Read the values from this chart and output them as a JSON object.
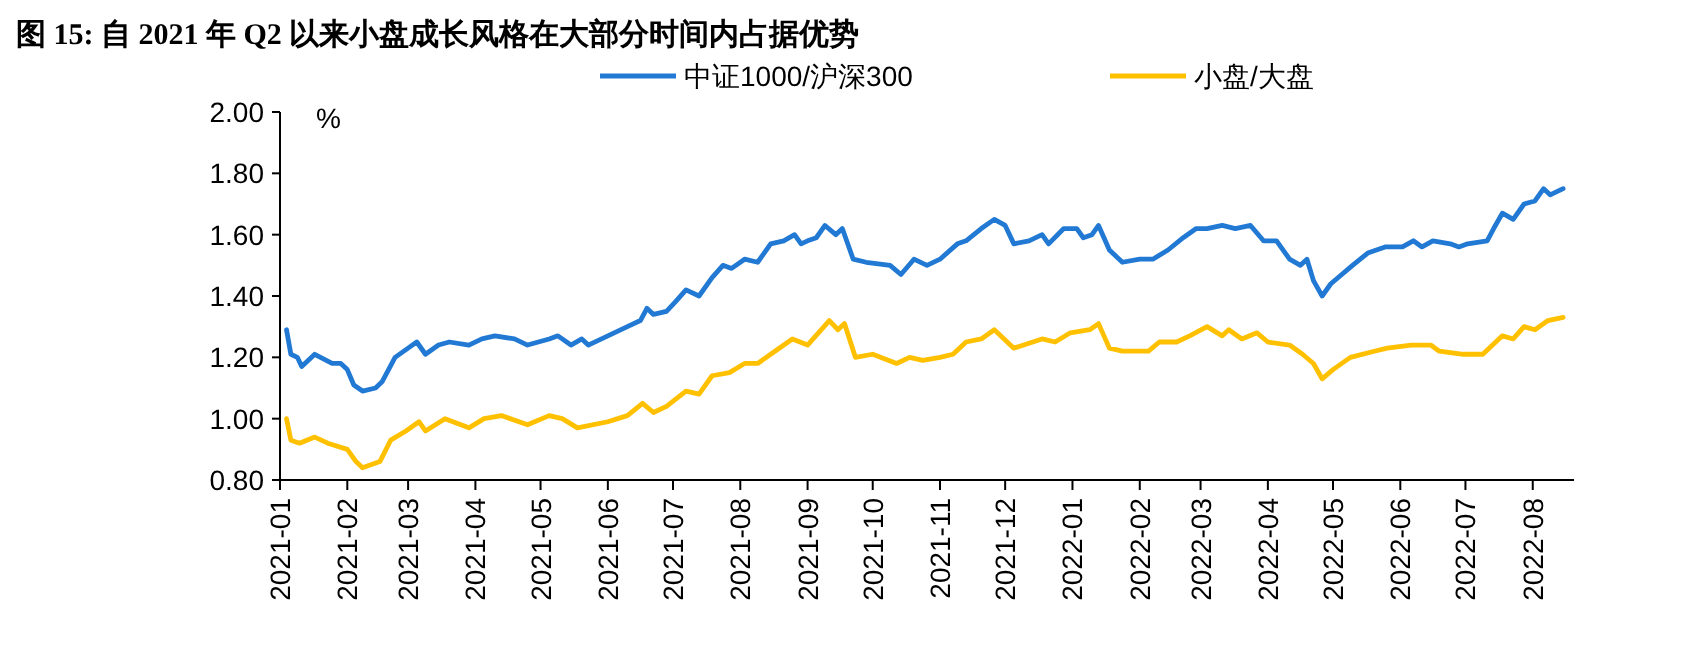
{
  "chart_data": {
    "type": "line",
    "title": "图 15: 自 2021 年 Q2 以来小盘成长风格在大部分时间内占据优势",
    "ylabel": "%",
    "xlim": [
      "2021-01-01",
      "2022-08-20"
    ],
    "xticks": [
      "2021-01",
      "2021-02",
      "2021-03",
      "2021-04",
      "2021-05",
      "2021-06",
      "2021-07",
      "2021-08",
      "2021-09",
      "2021-10",
      "2021-11",
      "2021-12",
      "2022-01",
      "2022-02",
      "2022-03",
      "2022-04",
      "2022-05",
      "2022-06",
      "2022-07",
      "2022-08"
    ],
    "ylim": [
      0.8,
      2.0
    ],
    "yticks": [
      {
        "value": 0.8,
        "label": "0.80"
      },
      {
        "value": 1.0,
        "label": "1.00"
      },
      {
        "value": 1.2,
        "label": "1.20"
      },
      {
        "value": 1.4,
        "label": "1.40"
      },
      {
        "value": 1.6,
        "label": "1.60"
      },
      {
        "value": 1.8,
        "label": "1.80"
      },
      {
        "value": 2.0,
        "label": "2.00"
      }
    ],
    "grid": false,
    "legend": "top",
    "marker": "none",
    "line_style": "solid",
    "series": [
      {
        "name": "中证1000/沪深300",
        "color": "#2179d4",
        "x": [
          "2021-01-04",
          "2021-01-06",
          "2021-01-09",
          "2021-01-11",
          "2021-01-17",
          "2021-01-25",
          "2021-01-29",
          "2021-02-01",
          "2021-02-04",
          "2021-02-08",
          "2021-02-14",
          "2021-02-17",
          "2021-02-23",
          "2021-03-01",
          "2021-03-05",
          "2021-03-09",
          "2021-03-15",
          "2021-03-20",
          "2021-03-29",
          "2021-04-04",
          "2021-04-10",
          "2021-04-19",
          "2021-04-25",
          "2021-05-05",
          "2021-05-09",
          "2021-05-15",
          "2021-05-20",
          "2021-05-23",
          "2021-06-01",
          "2021-06-10",
          "2021-06-16",
          "2021-06-19",
          "2021-06-22",
          "2021-06-28",
          "2021-07-02",
          "2021-07-07",
          "2021-07-13",
          "2021-07-19",
          "2021-07-24",
          "2021-07-28",
          "2021-08-03",
          "2021-08-09",
          "2021-08-15",
          "2021-08-21",
          "2021-08-26",
          "2021-08-29",
          "2021-09-01",
          "2021-09-05",
          "2021-09-09",
          "2021-09-14",
          "2021-09-17",
          "2021-09-22",
          "2021-09-28",
          "2021-10-09",
          "2021-10-14",
          "2021-10-20",
          "2021-10-26",
          "2021-11-01",
          "2021-11-09",
          "2021-11-13",
          "2021-11-20",
          "2021-11-26",
          "2021-12-01",
          "2021-12-05",
          "2021-12-12",
          "2021-12-18",
          "2021-12-21",
          "2021-12-28",
          "2022-01-03",
          "2022-01-06",
          "2022-01-10",
          "2022-01-13",
          "2022-01-18",
          "2022-01-24",
          "2022-02-01",
          "2022-02-07",
          "2022-02-14",
          "2022-02-21",
          "2022-02-27",
          "2022-03-04",
          "2022-03-11",
          "2022-03-17",
          "2022-03-24",
          "2022-03-30",
          "2022-04-05",
          "2022-04-11",
          "2022-04-16",
          "2022-04-19",
          "2022-04-22",
          "2022-04-26",
          "2022-04-30",
          "2022-05-10",
          "2022-05-17",
          "2022-05-25",
          "2022-06-02",
          "2022-06-07",
          "2022-06-11",
          "2022-06-16",
          "2022-06-24",
          "2022-06-28",
          "2022-07-02",
          "2022-07-11",
          "2022-07-14",
          "2022-07-18",
          "2022-07-23",
          "2022-07-28",
          "2022-08-02",
          "2022-08-06",
          "2022-08-09",
          "2022-08-15"
        ],
        "values": [
          1.29,
          1.21,
          1.2,
          1.17,
          1.21,
          1.18,
          1.18,
          1.16,
          1.11,
          1.09,
          1.1,
          1.12,
          1.2,
          1.23,
          1.25,
          1.21,
          1.24,
          1.25,
          1.24,
          1.26,
          1.27,
          1.26,
          1.24,
          1.26,
          1.27,
          1.24,
          1.26,
          1.24,
          1.27,
          1.3,
          1.32,
          1.36,
          1.34,
          1.35,
          1.38,
          1.42,
          1.4,
          1.46,
          1.5,
          1.49,
          1.52,
          1.51,
          1.57,
          1.58,
          1.6,
          1.57,
          1.58,
          1.59,
          1.63,
          1.6,
          1.62,
          1.52,
          1.51,
          1.5,
          1.47,
          1.52,
          1.5,
          1.52,
          1.57,
          1.58,
          1.62,
          1.65,
          1.63,
          1.57,
          1.58,
          1.6,
          1.57,
          1.62,
          1.62,
          1.59,
          1.6,
          1.63,
          1.55,
          1.51,
          1.52,
          1.52,
          1.55,
          1.59,
          1.62,
          1.62,
          1.63,
          1.62,
          1.63,
          1.58,
          1.58,
          1.52,
          1.5,
          1.52,
          1.45,
          1.4,
          1.44,
          1.5,
          1.54,
          1.56,
          1.56,
          1.58,
          1.56,
          1.58,
          1.57,
          1.56,
          1.57,
          1.58,
          1.62,
          1.67,
          1.65,
          1.7,
          1.71,
          1.75,
          1.73,
          1.75
        ]
      },
      {
        "name": "小盘/大盘",
        "color": "#ffc000",
        "x": [
          "2021-01-04",
          "2021-01-06",
          "2021-01-10",
          "2021-01-17",
          "2021-01-23",
          "2021-02-01",
          "2021-02-05",
          "2021-02-08",
          "2021-02-16",
          "2021-02-21",
          "2021-02-28",
          "2021-03-06",
          "2021-03-09",
          "2021-03-18",
          "2021-03-29",
          "2021-04-05",
          "2021-04-13",
          "2021-04-25",
          "2021-05-05",
          "2021-05-11",
          "2021-05-18",
          "2021-06-01",
          "2021-06-10",
          "2021-06-17",
          "2021-06-22",
          "2021-06-28",
          "2021-07-07",
          "2021-07-13",
          "2021-07-19",
          "2021-07-27",
          "2021-08-03",
          "2021-08-09",
          "2021-08-15",
          "2021-08-25",
          "2021-09-01",
          "2021-09-06",
          "2021-09-11",
          "2021-09-15",
          "2021-09-18",
          "2021-09-23",
          "2021-10-01",
          "2021-10-12",
          "2021-10-18",
          "2021-10-24",
          "2021-11-01",
          "2021-11-07",
          "2021-11-13",
          "2021-11-20",
          "2021-11-26",
          "2021-12-05",
          "2021-12-18",
          "2021-12-24",
          "2021-12-31",
          "2022-01-09",
          "2022-01-13",
          "2022-01-18",
          "2022-01-24",
          "2022-02-05",
          "2022-02-10",
          "2022-02-18",
          "2022-02-24",
          "2022-03-04",
          "2022-03-11",
          "2022-03-14",
          "2022-03-20",
          "2022-03-27",
          "2022-04-01",
          "2022-04-11",
          "2022-04-17",
          "2022-04-22",
          "2022-04-26",
          "2022-05-01",
          "2022-05-09",
          "2022-05-20",
          "2022-05-26",
          "2022-06-06",
          "2022-06-15",
          "2022-06-19",
          "2022-06-30",
          "2022-07-09",
          "2022-07-18",
          "2022-07-23",
          "2022-07-28",
          "2022-08-02",
          "2022-08-08",
          "2022-08-15"
        ],
        "values": [
          1.0,
          0.93,
          0.92,
          0.94,
          0.92,
          0.9,
          0.86,
          0.84,
          0.86,
          0.93,
          0.96,
          0.99,
          0.96,
          1.0,
          0.97,
          1.0,
          1.01,
          0.98,
          1.01,
          1.0,
          0.97,
          0.99,
          1.01,
          1.05,
          1.02,
          1.04,
          1.09,
          1.08,
          1.14,
          1.15,
          1.18,
          1.18,
          1.21,
          1.26,
          1.24,
          1.28,
          1.32,
          1.29,
          1.31,
          1.2,
          1.21,
          1.18,
          1.2,
          1.19,
          1.2,
          1.21,
          1.25,
          1.26,
          1.29,
          1.23,
          1.26,
          1.25,
          1.28,
          1.29,
          1.31,
          1.23,
          1.22,
          1.22,
          1.25,
          1.25,
          1.27,
          1.3,
          1.27,
          1.29,
          1.26,
          1.28,
          1.25,
          1.24,
          1.21,
          1.18,
          1.13,
          1.16,
          1.2,
          1.22,
          1.23,
          1.24,
          1.24,
          1.22,
          1.21,
          1.21,
          1.27,
          1.26,
          1.3,
          1.29,
          1.32,
          1.33
        ]
      }
    ]
  }
}
